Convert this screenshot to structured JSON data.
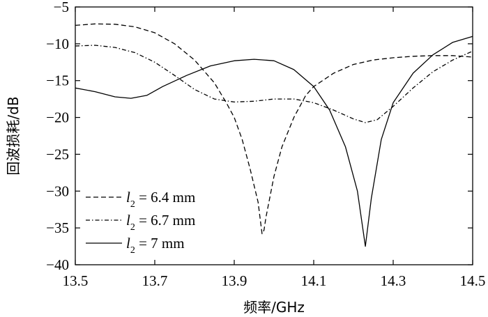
{
  "chart_data": {
    "type": "line",
    "title": "",
    "xlabel": "频率/GHz",
    "ylabel": "回波损耗/dB",
    "xlim": [
      13.5,
      14.5
    ],
    "ylim": [
      -40,
      -5
    ],
    "xticks": [
      "13.5",
      "13.7",
      "13.9",
      "14.1",
      "14.3",
      "14.5"
    ],
    "yticks": [
      "-5",
      "-10",
      "-15",
      "-20",
      "-25",
      "-30",
      "-35",
      "-40"
    ],
    "grid": false,
    "legend_position": "bottom-left",
    "series": [
      {
        "name": "l2 = 6.4 mm",
        "legend_symbol": "l",
        "legend_sub": "2",
        "legend_text": " = 6.4 mm",
        "style": "dashed",
        "color": "#000000",
        "points": [
          [
            13.5,
            -7.5
          ],
          [
            13.55,
            -7.3
          ],
          [
            13.6,
            -7.35
          ],
          [
            13.65,
            -7.7
          ],
          [
            13.7,
            -8.5
          ],
          [
            13.75,
            -10.0
          ],
          [
            13.8,
            -12.2
          ],
          [
            13.85,
            -15.3
          ],
          [
            13.88,
            -18.0
          ],
          [
            13.9,
            -20.0
          ],
          [
            13.92,
            -23.0
          ],
          [
            13.94,
            -27.0
          ],
          [
            13.96,
            -31.5
          ],
          [
            13.97,
            -35.8
          ],
          [
            13.975,
            -35.3
          ],
          [
            13.98,
            -33.5
          ],
          [
            14.0,
            -28.0
          ],
          [
            14.02,
            -24.0
          ],
          [
            14.05,
            -20.0
          ],
          [
            14.08,
            -17.0
          ],
          [
            14.1,
            -15.8
          ],
          [
            14.15,
            -14.0
          ],
          [
            14.2,
            -12.8
          ],
          [
            14.25,
            -12.2
          ],
          [
            14.3,
            -11.9
          ],
          [
            14.35,
            -11.7
          ],
          [
            14.4,
            -11.6
          ],
          [
            14.45,
            -11.6
          ],
          [
            14.5,
            -11.8
          ]
        ]
      },
      {
        "name": "l2 = 6.7 mm",
        "legend_symbol": "l",
        "legend_sub": "2",
        "legend_text": " = 6.7 mm",
        "style": "dashdot",
        "color": "#000000",
        "points": [
          [
            13.5,
            -10.3
          ],
          [
            13.55,
            -10.2
          ],
          [
            13.6,
            -10.5
          ],
          [
            13.65,
            -11.2
          ],
          [
            13.7,
            -12.5
          ],
          [
            13.75,
            -14.3
          ],
          [
            13.8,
            -16.2
          ],
          [
            13.85,
            -17.5
          ],
          [
            13.9,
            -17.9
          ],
          [
            13.95,
            -17.8
          ],
          [
            14.0,
            -17.5
          ],
          [
            14.05,
            -17.5
          ],
          [
            14.1,
            -18.0
          ],
          [
            14.15,
            -19.0
          ],
          [
            14.2,
            -20.2
          ],
          [
            14.23,
            -20.7
          ],
          [
            14.26,
            -20.3
          ],
          [
            14.3,
            -18.5
          ],
          [
            14.35,
            -16.0
          ],
          [
            14.4,
            -13.8
          ],
          [
            14.45,
            -12.2
          ],
          [
            14.5,
            -11.0
          ]
        ]
      },
      {
        "name": "l2 = 7 mm",
        "legend_symbol": "l",
        "legend_sub": "2",
        "legend_text": " = 7 mm",
        "style": "solid",
        "color": "#000000",
        "points": [
          [
            13.5,
            -16.0
          ],
          [
            13.55,
            -16.5
          ],
          [
            13.6,
            -17.2
          ],
          [
            13.64,
            -17.4
          ],
          [
            13.68,
            -17.0
          ],
          [
            13.72,
            -15.8
          ],
          [
            13.78,
            -14.3
          ],
          [
            13.84,
            -13.0
          ],
          [
            13.9,
            -12.3
          ],
          [
            13.95,
            -12.1
          ],
          [
            14.0,
            -12.3
          ],
          [
            14.05,
            -13.5
          ],
          [
            14.1,
            -15.8
          ],
          [
            14.14,
            -19.0
          ],
          [
            14.18,
            -24.0
          ],
          [
            14.21,
            -30.0
          ],
          [
            14.23,
            -37.5
          ],
          [
            14.245,
            -31.0
          ],
          [
            14.27,
            -23.0
          ],
          [
            14.3,
            -18.0
          ],
          [
            14.35,
            -14.0
          ],
          [
            14.4,
            -11.5
          ],
          [
            14.45,
            -9.8
          ],
          [
            14.5,
            -9.0
          ]
        ]
      }
    ]
  }
}
